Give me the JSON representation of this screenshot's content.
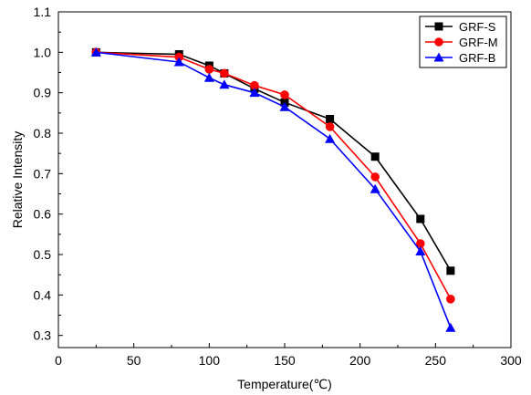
{
  "chart_data": {
    "type": "line",
    "title": "",
    "xlabel": "Temperature(℃)",
    "ylabel": "Relative Intensity",
    "xlim": [
      0,
      300
    ],
    "ylim": [
      0.27,
      1.1
    ],
    "xticks": [
      0,
      50,
      100,
      150,
      200,
      250,
      300
    ],
    "yticks": [
      0.3,
      0.4,
      0.5,
      0.6,
      0.7,
      0.8,
      0.9,
      1.0,
      1.1
    ],
    "xtick_labels": [
      "0",
      "50",
      "100",
      "150",
      "200",
      "250",
      "300"
    ],
    "ytick_labels": [
      "0.3",
      "0.4",
      "0.5",
      "0.6",
      "0.7",
      "0.8",
      "0.9",
      "1.0",
      "1.1"
    ],
    "grid": false,
    "legend_position": "top-right",
    "series": [
      {
        "name": "GRF-S",
        "color": "#000000",
        "marker": "square",
        "x": [
          25,
          80,
          100,
          110,
          130,
          150,
          180,
          210,
          240,
          260
        ],
        "y": [
          1.0,
          0.995,
          0.967,
          0.948,
          0.91,
          0.876,
          0.835,
          0.742,
          0.588,
          0.46
        ]
      },
      {
        "name": "GRF-M",
        "color": "#ff0000",
        "marker": "circle",
        "x": [
          25,
          80,
          100,
          110,
          130,
          150,
          180,
          210,
          240,
          260
        ],
        "y": [
          1.0,
          0.988,
          0.958,
          0.948,
          0.918,
          0.895,
          0.816,
          0.692,
          0.527,
          0.39
        ]
      },
      {
        "name": "GRF-B",
        "color": "#0000ff",
        "marker": "triangle",
        "x": [
          25,
          80,
          100,
          110,
          130,
          150,
          180,
          210,
          240,
          260
        ],
        "y": [
          1.0,
          0.976,
          0.937,
          0.92,
          0.9,
          0.865,
          0.786,
          0.662,
          0.508,
          0.319
        ]
      }
    ]
  }
}
